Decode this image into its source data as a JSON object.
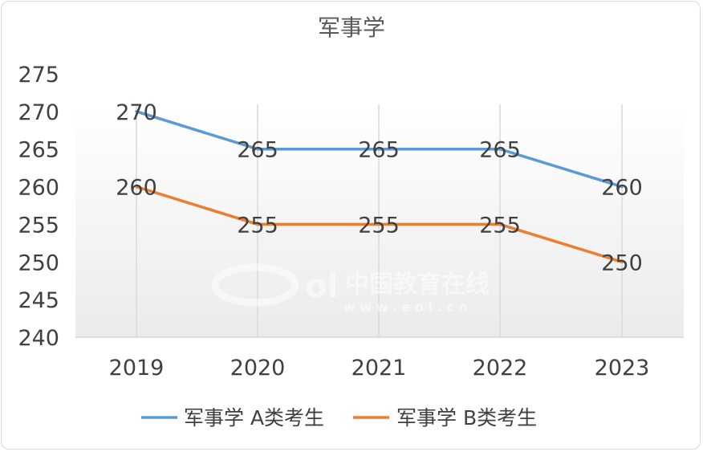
{
  "chart_data": {
    "type": "line",
    "title": "军事学",
    "categories": [
      "2019",
      "2020",
      "2021",
      "2022",
      "2023"
    ],
    "ylim": [
      240,
      275
    ],
    "yticks": [
      "275",
      "270",
      "265",
      "260",
      "255",
      "250",
      "245",
      "240"
    ],
    "ytick_values": [
      275,
      270,
      265,
      260,
      255,
      250,
      245,
      240
    ],
    "series": [
      {
        "name": "军事学 A类考生",
        "values": [
          270,
          265,
          265,
          265,
          260
        ],
        "color": "#5b9bd5"
      },
      {
        "name": "军事学 B类考生",
        "values": [
          260,
          255,
          255,
          255,
          250
        ],
        "color": "#ed7d31"
      }
    ],
    "legend_position": "bottom",
    "grid": "vertical"
  },
  "watermark": {
    "brand": "中国教育在线",
    "url": "w w w . e o l . c n"
  }
}
